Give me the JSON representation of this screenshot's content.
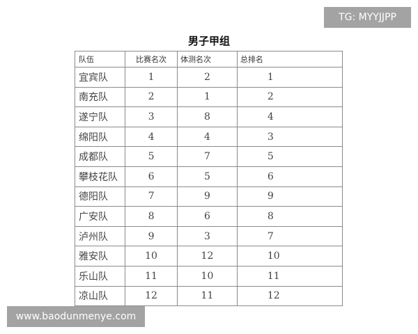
{
  "title": "男子甲组",
  "headers": [
    "队伍",
    "比赛名次",
    "体测名次",
    "总排名"
  ],
  "rows": [
    [
      "宜宾队",
      "1",
      "2",
      "1"
    ],
    [
      "南充队",
      "2",
      "1",
      "2"
    ],
    [
      "遂宁队",
      "3",
      "8",
      "4"
    ],
    [
      "绵阳队",
      "4",
      "4",
      "3"
    ],
    [
      "成都队",
      "5",
      "7",
      "5"
    ],
    [
      "攀枝花队",
      "6",
      "5",
      "6"
    ],
    [
      "德阳队",
      "7",
      "9",
      "9"
    ],
    [
      "广安队",
      "8",
      "6",
      "8"
    ],
    [
      "泸州队",
      "9",
      "3",
      "7"
    ],
    [
      "雅安队",
      "10",
      "12",
      "10"
    ],
    [
      "乐山队",
      "11",
      "10",
      "11"
    ],
    [
      "凉山队",
      "12",
      "11",
      "12"
    ]
  ],
  "watermarks": {
    "top": "TG: MYYJJPP",
    "bottom": "www.baodunmenye.com"
  }
}
